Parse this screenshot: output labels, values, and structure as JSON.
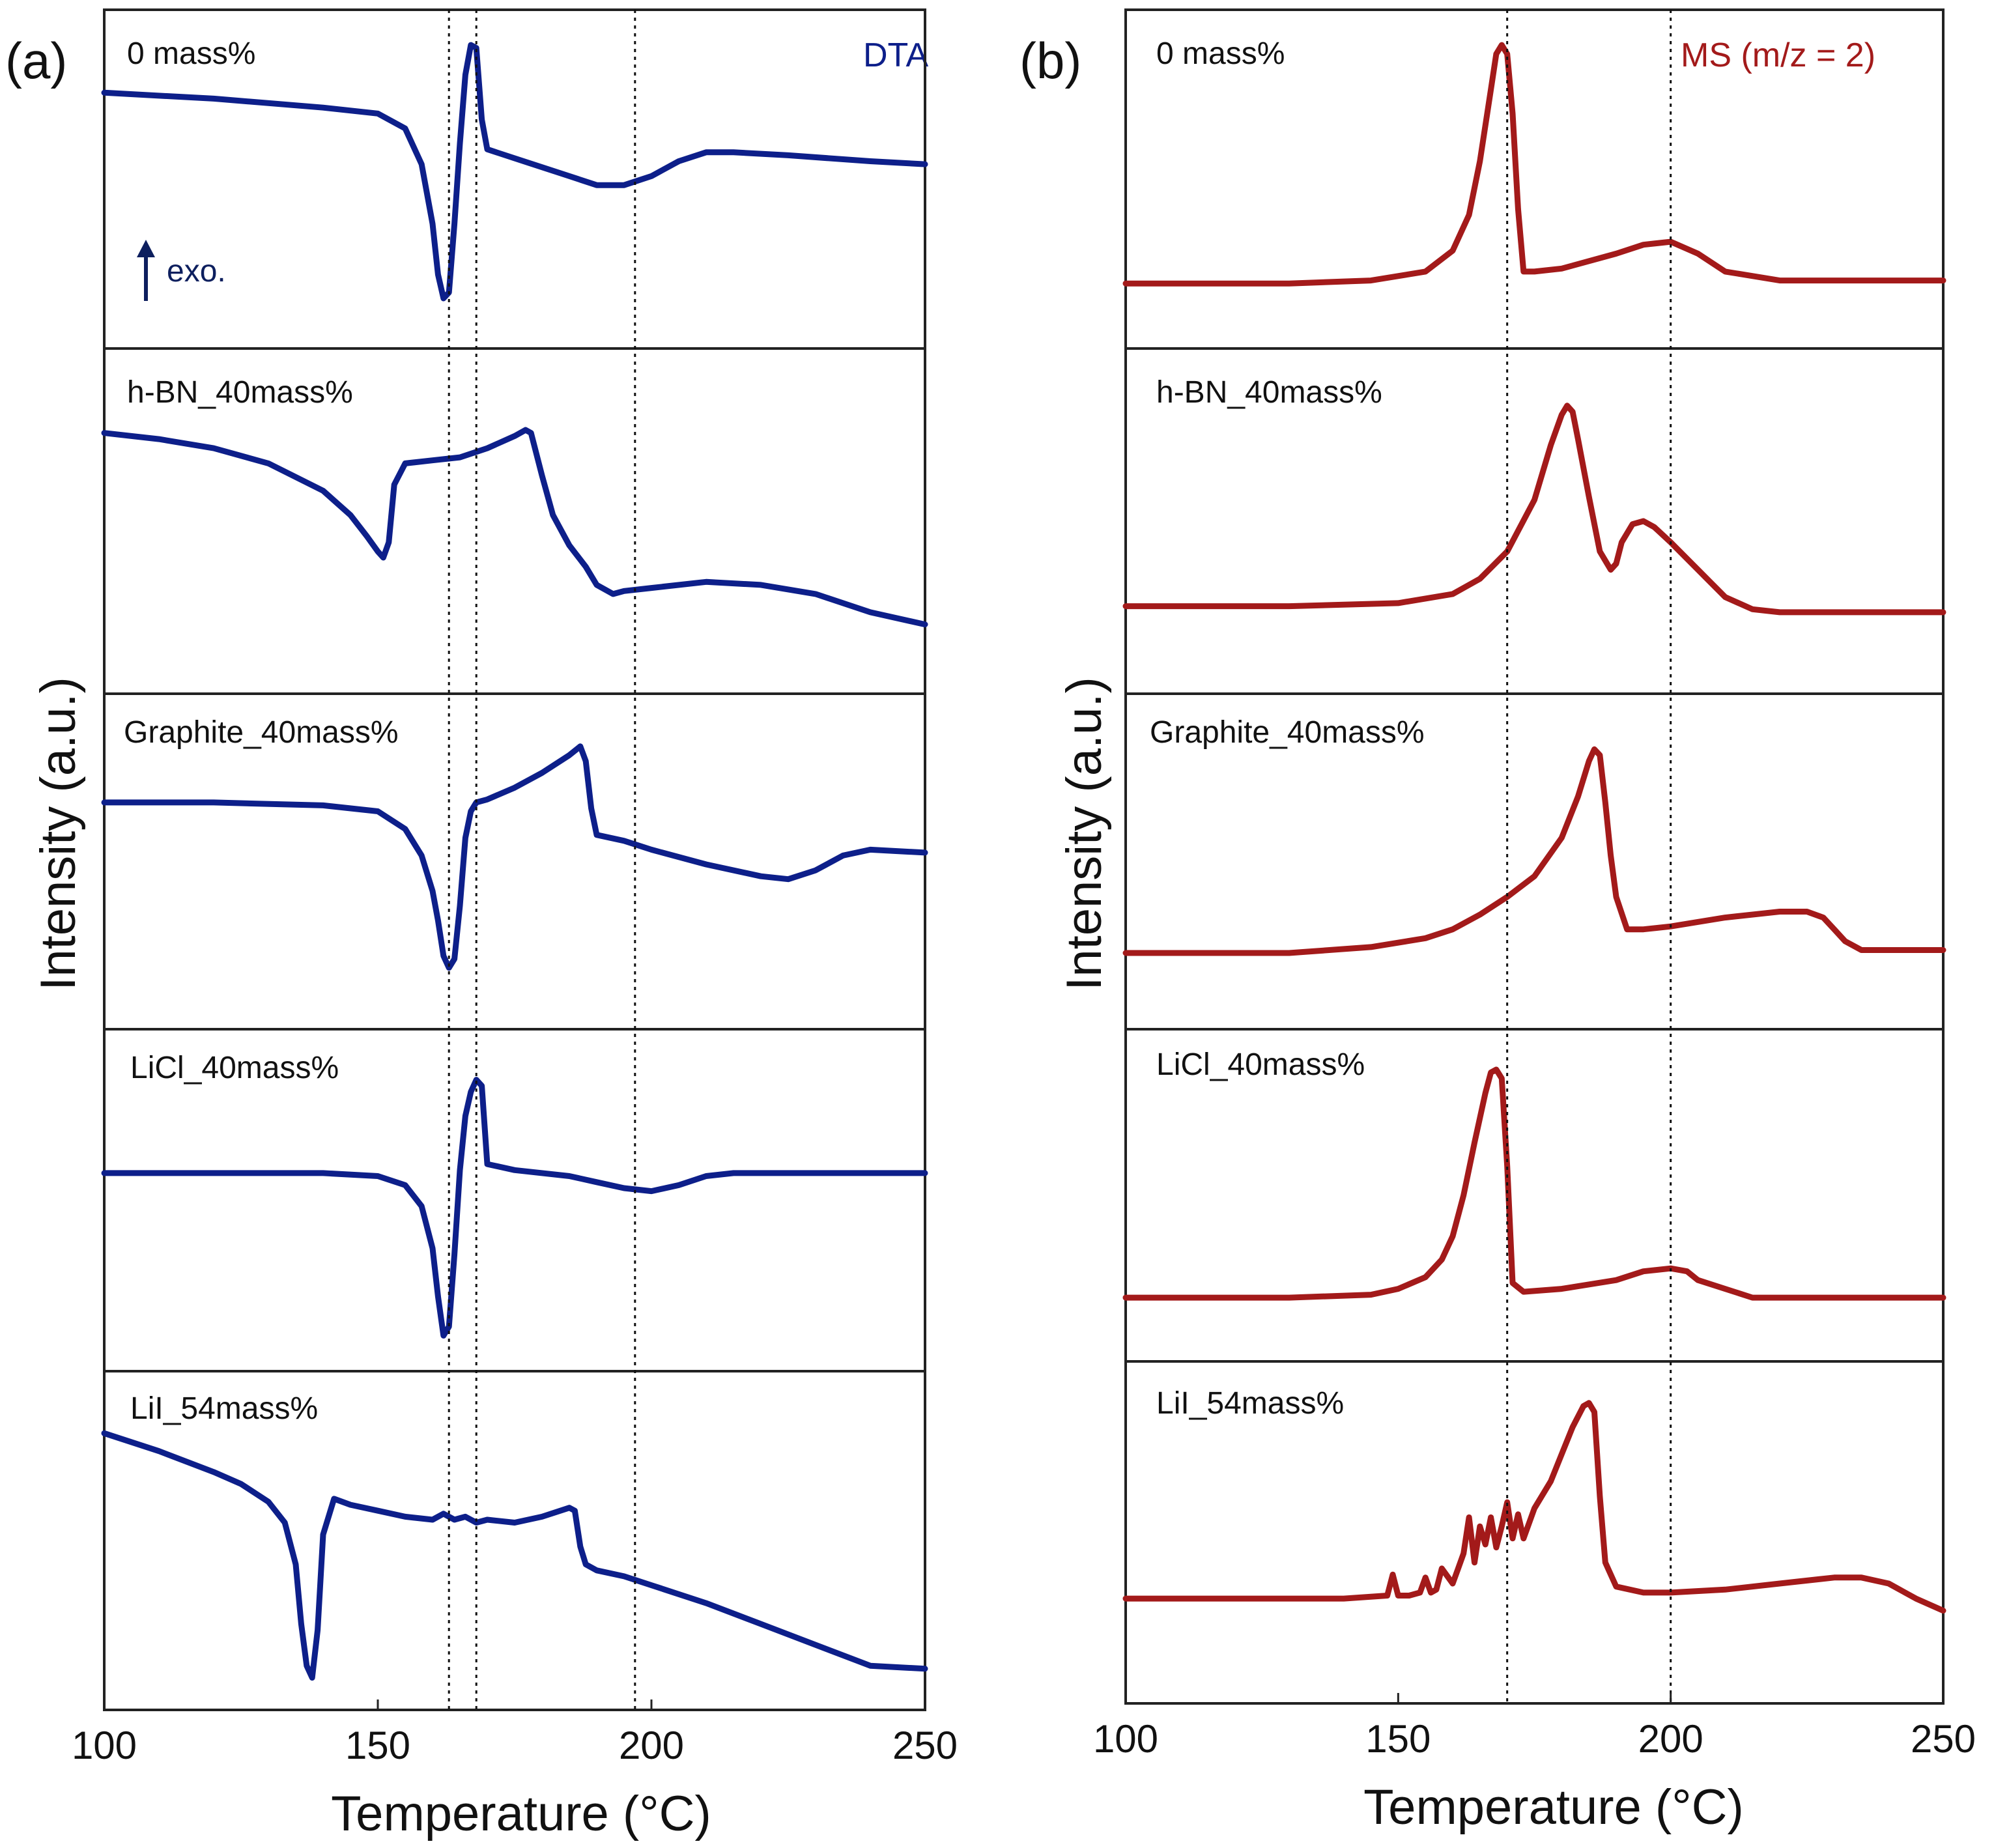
{
  "colors": {
    "dta": "#0d1f8a",
    "ms": "#a31a1a",
    "exo_arrow": "#0d1f5e"
  },
  "chart_data": [
    {
      "type": "line",
      "panel": "(a)",
      "signal": "DTA",
      "xlabel": "Temperature (°C)",
      "ylabel": "Intensity (a.u.)",
      "xlim": [
        100,
        250
      ],
      "ylim": [
        0,
        1
      ],
      "xticks": [
        "100",
        "150",
        "200",
        "250"
      ],
      "x_tick_values": [
        100,
        150,
        200,
        250
      ],
      "guide_lines": [
        163,
        168,
        197
      ],
      "annotation": "exo.",
      "series": [
        {
          "name": "0 mass%",
          "x": [
            100,
            120,
            140,
            150,
            155,
            158,
            160,
            161,
            162,
            163,
            164,
            165,
            166,
            167,
            168,
            169,
            170,
            175,
            185,
            190,
            195,
            200,
            205,
            210,
            215,
            225,
            240,
            250
          ],
          "y": [
            0.79,
            0.77,
            0.74,
            0.72,
            0.67,
            0.55,
            0.35,
            0.18,
            0.1,
            0.12,
            0.35,
            0.62,
            0.85,
            0.95,
            0.94,
            0.7,
            0.6,
            0.57,
            0.51,
            0.48,
            0.48,
            0.51,
            0.56,
            0.59,
            0.59,
            0.58,
            0.56,
            0.55
          ]
        },
        {
          "name": "h-BN_40mass%",
          "x": [
            100,
            110,
            120,
            130,
            140,
            145,
            148,
            150,
            151,
            152,
            153,
            155,
            160,
            165,
            170,
            175,
            177,
            178,
            179,
            180,
            182,
            185,
            188,
            190,
            193,
            195,
            200,
            210,
            220,
            230,
            240,
            250
          ],
          "y": [
            0.79,
            0.77,
            0.74,
            0.69,
            0.6,
            0.52,
            0.45,
            0.4,
            0.38,
            0.43,
            0.62,
            0.69,
            0.7,
            0.71,
            0.74,
            0.78,
            0.8,
            0.79,
            0.72,
            0.65,
            0.52,
            0.42,
            0.35,
            0.29,
            0.26,
            0.27,
            0.28,
            0.3,
            0.29,
            0.26,
            0.2,
            0.16
          ]
        },
        {
          "name": "Graphite_40mass%",
          "x": [
            100,
            120,
            140,
            150,
            155,
            158,
            160,
            161,
            162,
            163,
            164,
            165,
            166,
            167,
            168,
            170,
            175,
            180,
            185,
            187,
            188,
            189,
            190,
            195,
            200,
            210,
            220,
            225,
            230,
            235,
            240,
            250
          ],
          "y": [
            0.7,
            0.7,
            0.69,
            0.67,
            0.61,
            0.52,
            0.4,
            0.3,
            0.18,
            0.14,
            0.17,
            0.35,
            0.58,
            0.67,
            0.7,
            0.71,
            0.75,
            0.8,
            0.86,
            0.89,
            0.84,
            0.68,
            0.59,
            0.57,
            0.54,
            0.49,
            0.45,
            0.44,
            0.47,
            0.52,
            0.54,
            0.53
          ]
        },
        {
          "name": "LiCl_40mass%",
          "x": [
            100,
            120,
            140,
            150,
            155,
            158,
            160,
            161,
            162,
            163,
            164,
            165,
            166,
            167,
            168,
            169,
            170,
            175,
            185,
            190,
            195,
            200,
            205,
            210,
            215,
            225,
            240,
            250
          ],
          "y": [
            0.59,
            0.59,
            0.59,
            0.58,
            0.55,
            0.48,
            0.34,
            0.18,
            0.05,
            0.08,
            0.32,
            0.6,
            0.78,
            0.86,
            0.9,
            0.88,
            0.62,
            0.6,
            0.58,
            0.56,
            0.54,
            0.53,
            0.55,
            0.58,
            0.59,
            0.59,
            0.59,
            0.59
          ]
        },
        {
          "name": "LiI_54mass%",
          "x": [
            100,
            110,
            120,
            125,
            130,
            133,
            135,
            136,
            137,
            138,
            139,
            140,
            142,
            145,
            150,
            155,
            160,
            162,
            164,
            166,
            168,
            170,
            175,
            180,
            185,
            186,
            187,
            188,
            190,
            195,
            200,
            210,
            220,
            230,
            240,
            250
          ],
          "y": [
            0.86,
            0.8,
            0.73,
            0.69,
            0.63,
            0.56,
            0.42,
            0.22,
            0.08,
            0.04,
            0.2,
            0.52,
            0.64,
            0.62,
            0.6,
            0.58,
            0.57,
            0.59,
            0.57,
            0.58,
            0.56,
            0.57,
            0.56,
            0.58,
            0.61,
            0.6,
            0.48,
            0.42,
            0.4,
            0.38,
            0.35,
            0.29,
            0.22,
            0.15,
            0.08,
            0.07
          ]
        }
      ]
    },
    {
      "type": "line",
      "panel": "(b)",
      "signal": "MS (m/z = 2)",
      "xlabel": "Temperature (°C)",
      "ylabel": "Intensity (a.u.)",
      "xlim": [
        100,
        250
      ],
      "ylim": [
        0,
        1
      ],
      "xticks": [
        "100",
        "150",
        "200",
        "250"
      ],
      "x_tick_values": [
        100,
        150,
        200,
        250
      ],
      "guide_lines": [
        170,
        200
      ],
      "series": [
        {
          "name": "0 mass%",
          "x": [
            100,
            130,
            145,
            155,
            160,
            163,
            165,
            167,
            168,
            169,
            170,
            171,
            172,
            173,
            175,
            180,
            190,
            195,
            200,
            205,
            210,
            220,
            250
          ],
          "y": [
            0.15,
            0.15,
            0.16,
            0.19,
            0.26,
            0.38,
            0.56,
            0.8,
            0.92,
            0.95,
            0.92,
            0.72,
            0.4,
            0.19,
            0.19,
            0.2,
            0.25,
            0.28,
            0.29,
            0.25,
            0.19,
            0.16,
            0.16
          ]
        },
        {
          "name": "h-BN_40mass%",
          "x": [
            100,
            130,
            150,
            160,
            165,
            170,
            175,
            178,
            180,
            181,
            182,
            183,
            185,
            187,
            189,
            190,
            191,
            193,
            195,
            197,
            200,
            205,
            210,
            215,
            220,
            230,
            250
          ],
          "y": [
            0.22,
            0.22,
            0.23,
            0.26,
            0.31,
            0.4,
            0.57,
            0.75,
            0.85,
            0.88,
            0.86,
            0.77,
            0.58,
            0.4,
            0.34,
            0.36,
            0.43,
            0.49,
            0.5,
            0.48,
            0.43,
            0.34,
            0.25,
            0.21,
            0.2,
            0.2,
            0.2
          ]
        },
        {
          "name": "Graphite_40mass%",
          "x": [
            100,
            130,
            145,
            155,
            160,
            165,
            170,
            175,
            180,
            183,
            185,
            186,
            187,
            188,
            189,
            190,
            192,
            195,
            200,
            210,
            220,
            225,
            228,
            230,
            232,
            235,
            250
          ],
          "y": [
            0.19,
            0.19,
            0.21,
            0.24,
            0.27,
            0.32,
            0.38,
            0.45,
            0.58,
            0.72,
            0.84,
            0.88,
            0.86,
            0.7,
            0.52,
            0.38,
            0.27,
            0.27,
            0.28,
            0.31,
            0.33,
            0.33,
            0.31,
            0.27,
            0.23,
            0.2,
            0.2
          ]
        },
        {
          "name": "LiCl_40mass%",
          "x": [
            100,
            130,
            145,
            150,
            155,
            158,
            160,
            162,
            164,
            166,
            167,
            168,
            169,
            170,
            171,
            173,
            180,
            190,
            195,
            200,
            203,
            205,
            210,
            215,
            220,
            250
          ],
          "y": [
            0.15,
            0.15,
            0.16,
            0.18,
            0.22,
            0.28,
            0.36,
            0.5,
            0.68,
            0.85,
            0.92,
            0.93,
            0.9,
            0.6,
            0.2,
            0.17,
            0.18,
            0.21,
            0.24,
            0.25,
            0.24,
            0.21,
            0.18,
            0.15,
            0.15,
            0.15
          ]
        },
        {
          "name": "LiI_54mass%",
          "x": [
            100,
            120,
            140,
            148,
            149,
            150,
            152,
            154,
            155,
            156,
            157,
            158,
            160,
            161,
            162,
            163,
            164,
            165,
            166,
            167,
            168,
            169,
            170,
            171,
            172,
            173,
            175,
            178,
            180,
            182,
            184,
            185,
            186,
            187,
            188,
            190,
            195,
            200,
            210,
            220,
            230,
            235,
            240,
            245,
            250
          ],
          "y": [
            0.28,
            0.28,
            0.28,
            0.29,
            0.36,
            0.29,
            0.29,
            0.3,
            0.35,
            0.3,
            0.31,
            0.38,
            0.33,
            0.38,
            0.43,
            0.55,
            0.4,
            0.52,
            0.46,
            0.55,
            0.45,
            0.52,
            0.6,
            0.48,
            0.56,
            0.48,
            0.58,
            0.67,
            0.76,
            0.85,
            0.92,
            0.93,
            0.9,
            0.62,
            0.4,
            0.32,
            0.3,
            0.3,
            0.31,
            0.33,
            0.35,
            0.35,
            0.33,
            0.28,
            0.24
          ]
        }
      ]
    }
  ]
}
